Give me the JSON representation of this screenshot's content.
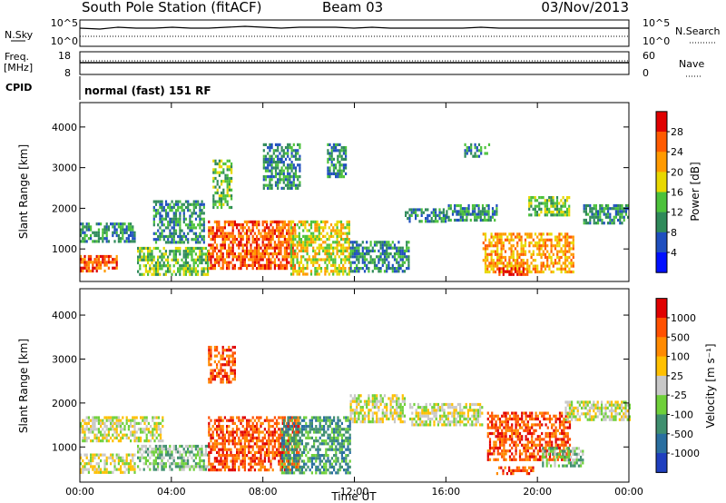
{
  "header": {
    "station": "South Pole Station (fitACF)",
    "beam": "Beam 03",
    "date": "03/Nov/2013"
  },
  "info_panels": {
    "nsky": {
      "label": "N.Sky",
      "ticks": [
        "10^5",
        "10^0"
      ],
      "right_label": "N.Search",
      "right_ticks": [
        "10^5",
        "10^0"
      ]
    },
    "freq": {
      "label_top": "Freq.",
      "label_bottom": "[MHz]",
      "ticks": [
        "18",
        "8"
      ],
      "right_label": "Nave",
      "right_ticks": [
        "60",
        "0"
      ]
    },
    "cpid": {
      "label": "CPID",
      "text": "normal (fast) 151 RF"
    }
  },
  "chart_data": [
    {
      "type": "heatmap",
      "name": "power",
      "xlabel": "Time UT",
      "ylabel": "Slant Range [km]",
      "xlim": [
        0,
        24
      ],
      "ylim": [
        200,
        4600
      ],
      "yticks": [
        1000,
        2000,
        3000,
        4000
      ],
      "ytick_labels": [
        "1000",
        "2000",
        "3000",
        "4000"
      ],
      "colorbar": {
        "label": "Power [dB]",
        "tick_labels": [
          "4",
          "8",
          "12",
          "16",
          "20",
          "24",
          "28"
        ],
        "colors": [
          "#0010ff",
          "#1f4fbf",
          "#2f8a5a",
          "#4cc23b",
          "#e8d800",
          "#ff9a00",
          "#ff5a00",
          "#e00000"
        ]
      },
      "regions": [
        {
          "t0": 0.0,
          "t1": 1.6,
          "r0": 450,
          "r1": 850,
          "level": 6
        },
        {
          "t0": 0.0,
          "t1": 2.4,
          "r0": 1150,
          "r1": 1650,
          "level": 2
        },
        {
          "t0": 2.5,
          "t1": 5.6,
          "r0": 350,
          "r1": 1050,
          "level": 3
        },
        {
          "t0": 3.2,
          "t1": 5.4,
          "r0": 1150,
          "r1": 2200,
          "level": 2
        },
        {
          "t0": 5.6,
          "t1": 9.4,
          "r0": 500,
          "r1": 1700,
          "level": 6
        },
        {
          "t0": 5.8,
          "t1": 6.6,
          "r0": 2000,
          "r1": 3200,
          "level": 3
        },
        {
          "t0": 8.0,
          "t1": 9.6,
          "r0": 2500,
          "r1": 3600,
          "level": 2
        },
        {
          "t0": 9.2,
          "t1": 11.8,
          "r0": 400,
          "r1": 1700,
          "level": 4
        },
        {
          "t0": 10.8,
          "t1": 11.6,
          "r0": 2800,
          "r1": 3600,
          "level": 2
        },
        {
          "t0": 11.8,
          "t1": 14.4,
          "r0": 450,
          "r1": 1200,
          "level": 2
        },
        {
          "t0": 14.2,
          "t1": 16.0,
          "r0": 1650,
          "r1": 2000,
          "level": 2
        },
        {
          "t0": 16.0,
          "t1": 18.2,
          "r0": 1700,
          "r1": 2100,
          "level": 2
        },
        {
          "t0": 16.8,
          "t1": 17.9,
          "r0": 3250,
          "r1": 3600,
          "level": 2
        },
        {
          "t0": 17.6,
          "t1": 21.6,
          "r0": 450,
          "r1": 1400,
          "level": 5
        },
        {
          "t0": 18.3,
          "t1": 19.6,
          "r0": 350,
          "r1": 550,
          "level": 7
        },
        {
          "t0": 19.6,
          "t1": 21.4,
          "r0": 1800,
          "r1": 2300,
          "level": 3
        },
        {
          "t0": 22.0,
          "t1": 24.0,
          "r0": 1600,
          "r1": 2100,
          "level": 2
        }
      ]
    },
    {
      "type": "heatmap",
      "name": "velocity",
      "xlabel": "Time UT",
      "ylabel": "Slant Range [km]",
      "xlim": [
        0,
        24
      ],
      "ylim": [
        200,
        4600
      ],
      "xticks": [
        0,
        4,
        8,
        12,
        16,
        20,
        24
      ],
      "xtick_labels": [
        "00:00",
        "04:00",
        "08:00",
        "12:00",
        "16:00",
        "20:00",
        "00:00"
      ],
      "yticks": [
        1000,
        2000,
        3000,
        4000
      ],
      "ytick_labels": [
        "1000",
        "2000",
        "3000",
        "4000"
      ],
      "colorbar": {
        "label": "Velocity [m s⁻¹]",
        "tick_labels": [
          "1000",
          "500",
          "100",
          "25",
          "-25",
          "-100",
          "-500",
          "-1000"
        ],
        "colors": [
          "#1f3fbf",
          "#2a6fa0",
          "#3f8f6f",
          "#6fd03a",
          "#c8c8c8",
          "#ffc000",
          "#ff8a00",
          "#ff5000",
          "#e00000"
        ]
      },
      "regions": [
        {
          "t0": 0.0,
          "t1": 2.4,
          "r0": 450,
          "r1": 850,
          "level": 4
        },
        {
          "t0": 0.0,
          "t1": 3.6,
          "r0": 1150,
          "r1": 1700,
          "level": 4
        },
        {
          "t0": 2.5,
          "t1": 5.6,
          "r0": 500,
          "r1": 1050,
          "level": 3
        },
        {
          "t0": 5.6,
          "t1": 9.6,
          "r0": 500,
          "r1": 1700,
          "level": 7
        },
        {
          "t0": 5.6,
          "t1": 6.8,
          "r0": 2500,
          "r1": 3300,
          "level": 7
        },
        {
          "t0": 8.8,
          "t1": 11.8,
          "r0": 400,
          "r1": 1700,
          "level": 2
        },
        {
          "t0": 11.8,
          "t1": 14.2,
          "r0": 1600,
          "r1": 2200,
          "level": 4
        },
        {
          "t0": 14.4,
          "t1": 17.6,
          "r0": 1500,
          "r1": 2000,
          "level": 4
        },
        {
          "t0": 17.8,
          "t1": 21.4,
          "r0": 700,
          "r1": 1800,
          "level": 7
        },
        {
          "t0": 18.2,
          "t1": 19.8,
          "r0": 380,
          "r1": 560,
          "level": 7
        },
        {
          "t0": 20.2,
          "t1": 22.0,
          "r0": 600,
          "r1": 1000,
          "level": 3
        },
        {
          "t0": 21.2,
          "t1": 24.0,
          "r0": 1650,
          "r1": 2050,
          "level": 4
        }
      ]
    }
  ]
}
